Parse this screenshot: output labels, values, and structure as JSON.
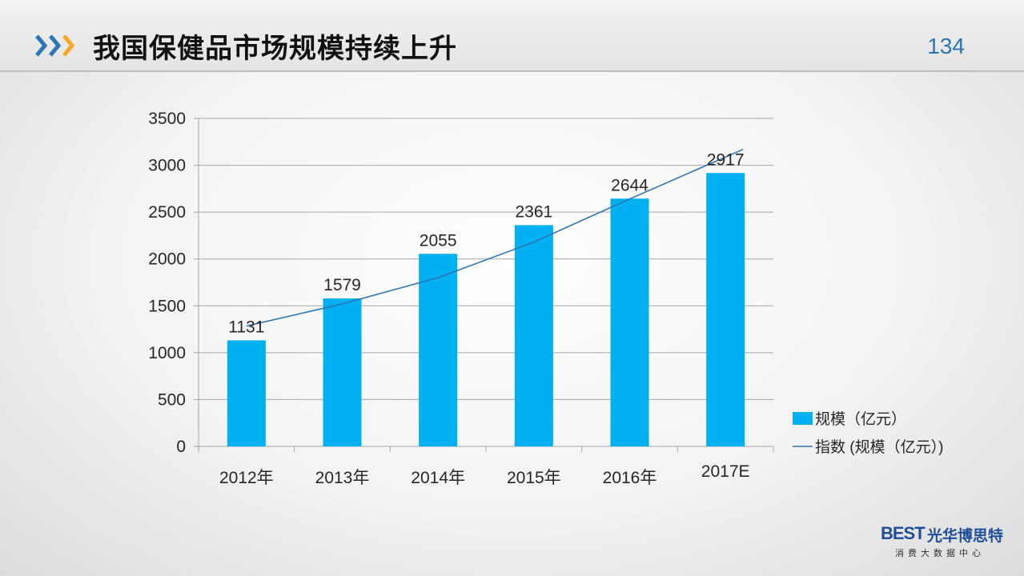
{
  "header": {
    "title": "我国保健品市场规模持续上升",
    "page_number": "134"
  },
  "logo": {
    "mark": "BEST",
    "name": "光华博思特",
    "subtitle": "消费大数据中心"
  },
  "colors": {
    "bar": "#00b0f0",
    "trend": "#2e75b6",
    "accent_blue": "#2e75b6",
    "accent_orange": "#f5a623"
  },
  "chart_data": {
    "type": "bar",
    "categories": [
      "2012年",
      "2013年",
      "2014年",
      "2015年",
      "2016年",
      "2017E"
    ],
    "series": [
      {
        "name": "规模（亿元）",
        "type": "bar",
        "values": [
          1131,
          1579,
          2055,
          2361,
          2644,
          2917
        ]
      },
      {
        "name": "指数 (规模（亿元）)",
        "type": "line",
        "trendline": "exponential",
        "values": [
          1285,
          1520,
          1800,
          2180,
          2640,
          3170
        ]
      }
    ],
    "data_labels": [
      "1131",
      "1579",
      "2055",
      "2361",
      "2644",
      "2917"
    ],
    "ylim": [
      0,
      3500
    ],
    "yticks": [
      0,
      500,
      1000,
      1500,
      2000,
      2500,
      3000,
      3500
    ],
    "grid": true,
    "legend": "right"
  }
}
